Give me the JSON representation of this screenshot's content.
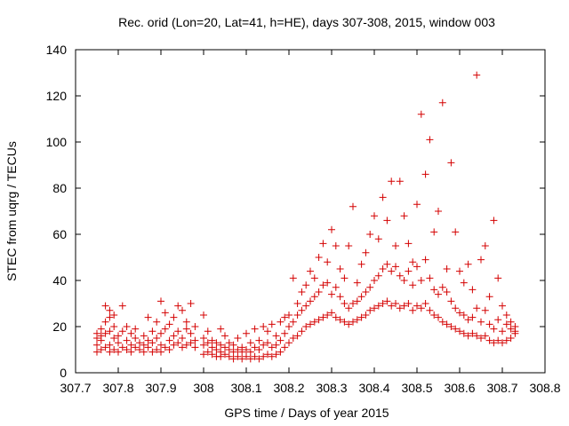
{
  "chart_data": {
    "type": "scatter",
    "title": "Rec. orid (Lon=20, Lat=41, h=HE), days 307-308, 2015, window 003",
    "xlabel": "GPS time / Days of year 2015",
    "ylabel": "STEC from uqrg / TECUs",
    "xlim": [
      307.7,
      308.8
    ],
    "ylim": [
      0,
      140
    ],
    "xticks": [
      "307.7",
      "307.8",
      "307.9",
      "308",
      "308.1",
      "308.2",
      "308.3",
      "308.4",
      "308.5",
      "308.6",
      "308.7",
      "308.8"
    ],
    "yticks": [
      "0",
      "20",
      "40",
      "60",
      "80",
      "100",
      "120",
      "140"
    ],
    "grid": false,
    "marker": "plus",
    "color": "#d40000",
    "series": [
      {
        "points": [
          [
            307.75,
            9
          ],
          [
            307.75,
            12
          ],
          [
            307.75,
            15
          ],
          [
            307.75,
            17
          ],
          [
            307.76,
            10
          ],
          [
            307.76,
            14
          ],
          [
            307.76,
            16
          ],
          [
            307.76,
            19
          ],
          [
            307.77,
            11
          ],
          [
            307.77,
            17
          ],
          [
            307.77,
            22
          ],
          [
            307.77,
            29
          ],
          [
            307.78,
            9
          ],
          [
            307.78,
            12
          ],
          [
            307.78,
            18
          ],
          [
            307.78,
            24
          ],
          [
            307.78,
            27
          ],
          [
            307.79,
            10
          ],
          [
            307.79,
            15
          ],
          [
            307.79,
            20
          ],
          [
            307.79,
            25
          ],
          [
            307.8,
            9
          ],
          [
            307.8,
            13
          ],
          [
            307.8,
            16
          ],
          [
            307.81,
            11
          ],
          [
            307.81,
            18
          ],
          [
            307.81,
            29
          ],
          [
            307.82,
            10
          ],
          [
            307.82,
            14
          ],
          [
            307.82,
            20
          ],
          [
            307.83,
            9
          ],
          [
            307.83,
            12
          ],
          [
            307.83,
            17
          ],
          [
            307.84,
            11
          ],
          [
            307.84,
            15
          ],
          [
            307.84,
            19
          ],
          [
            307.85,
            10
          ],
          [
            307.85,
            13
          ],
          [
            307.86,
            9
          ],
          [
            307.86,
            12
          ],
          [
            307.86,
            16
          ],
          [
            307.87,
            11
          ],
          [
            307.87,
            14
          ],
          [
            307.87,
            24
          ],
          [
            307.88,
            9
          ],
          [
            307.88,
            13
          ],
          [
            307.88,
            18
          ],
          [
            307.89,
            10
          ],
          [
            307.89,
            15
          ],
          [
            307.89,
            22
          ],
          [
            307.9,
            9
          ],
          [
            307.9,
            12
          ],
          [
            307.9,
            17
          ],
          [
            307.9,
            31
          ],
          [
            307.91,
            11
          ],
          [
            307.91,
            19
          ],
          [
            307.91,
            26
          ],
          [
            307.92,
            10
          ],
          [
            307.92,
            14
          ],
          [
            307.92,
            21
          ],
          [
            307.93,
            12
          ],
          [
            307.93,
            16
          ],
          [
            307.93,
            24
          ],
          [
            307.94,
            13
          ],
          [
            307.94,
            18
          ],
          [
            307.94,
            29
          ],
          [
            307.95,
            11
          ],
          [
            307.95,
            15
          ],
          [
            307.95,
            27
          ],
          [
            307.96,
            12
          ],
          [
            307.96,
            19
          ],
          [
            307.96,
            22
          ],
          [
            307.97,
            13
          ],
          [
            307.97,
            17
          ],
          [
            307.97,
            30
          ],
          [
            307.98,
            11
          ],
          [
            307.98,
            14
          ],
          [
            307.98,
            20
          ],
          [
            308.0,
            8
          ],
          [
            308.0,
            12
          ],
          [
            308.0,
            15
          ],
          [
            308.0,
            25
          ],
          [
            308.01,
            9
          ],
          [
            308.01,
            13
          ],
          [
            308.01,
            18
          ],
          [
            308.02,
            8
          ],
          [
            308.02,
            11
          ],
          [
            308.02,
            14
          ],
          [
            308.03,
            7
          ],
          [
            308.03,
            10
          ],
          [
            308.03,
            13
          ],
          [
            308.04,
            7
          ],
          [
            308.04,
            9
          ],
          [
            308.04,
            12
          ],
          [
            308.04,
            19
          ],
          [
            308.05,
            8
          ],
          [
            308.05,
            11
          ],
          [
            308.05,
            16
          ],
          [
            308.06,
            7
          ],
          [
            308.06,
            10
          ],
          [
            308.06,
            13
          ],
          [
            308.07,
            6
          ],
          [
            308.07,
            9
          ],
          [
            308.07,
            12
          ],
          [
            308.08,
            7
          ],
          [
            308.08,
            10
          ],
          [
            308.08,
            15
          ],
          [
            308.09,
            6
          ],
          [
            308.09,
            9
          ],
          [
            308.09,
            11
          ],
          [
            308.1,
            7
          ],
          [
            308.1,
            10
          ],
          [
            308.1,
            17
          ],
          [
            308.11,
            6
          ],
          [
            308.11,
            9
          ],
          [
            308.11,
            13
          ],
          [
            308.12,
            7
          ],
          [
            308.12,
            11
          ],
          [
            308.12,
            19
          ],
          [
            308.13,
            6
          ],
          [
            308.13,
            10
          ],
          [
            308.13,
            14
          ],
          [
            308.14,
            7
          ],
          [
            308.14,
            12
          ],
          [
            308.14,
            20
          ],
          [
            308.15,
            8
          ],
          [
            308.15,
            13
          ],
          [
            308.15,
            18
          ],
          [
            308.16,
            7
          ],
          [
            308.16,
            11
          ],
          [
            308.16,
            21
          ],
          [
            308.17,
            8
          ],
          [
            308.17,
            12
          ],
          [
            308.17,
            16
          ],
          [
            308.18,
            9
          ],
          [
            308.18,
            14
          ],
          [
            308.18,
            22
          ],
          [
            308.19,
            11
          ],
          [
            308.19,
            17
          ],
          [
            308.19,
            24
          ],
          [
            308.2,
            13
          ],
          [
            308.2,
            20
          ],
          [
            308.2,
            25
          ],
          [
            308.21,
            15
          ],
          [
            308.21,
            22
          ],
          [
            308.21,
            41
          ],
          [
            308.22,
            16
          ],
          [
            308.22,
            25
          ],
          [
            308.22,
            30
          ],
          [
            308.23,
            18
          ],
          [
            308.23,
            27
          ],
          [
            308.23,
            35
          ],
          [
            308.24,
            20
          ],
          [
            308.24,
            29
          ],
          [
            308.24,
            38
          ],
          [
            308.25,
            21
          ],
          [
            308.25,
            31
          ],
          [
            308.25,
            44
          ],
          [
            308.26,
            22
          ],
          [
            308.26,
            33
          ],
          [
            308.26,
            41
          ],
          [
            308.27,
            23
          ],
          [
            308.27,
            35
          ],
          [
            308.27,
            50
          ],
          [
            308.28,
            24
          ],
          [
            308.28,
            38
          ],
          [
            308.28,
            56
          ],
          [
            308.29,
            25
          ],
          [
            308.29,
            39
          ],
          [
            308.29,
            48
          ],
          [
            308.3,
            26
          ],
          [
            308.3,
            34
          ],
          [
            308.3,
            62
          ],
          [
            308.31,
            24
          ],
          [
            308.31,
            37
          ],
          [
            308.31,
            55
          ],
          [
            308.32,
            23
          ],
          [
            308.32,
            33
          ],
          [
            308.32,
            45
          ],
          [
            308.33,
            22
          ],
          [
            308.33,
            30
          ],
          [
            308.33,
            41
          ],
          [
            308.34,
            21
          ],
          [
            308.34,
            28
          ],
          [
            308.34,
            55
          ],
          [
            308.35,
            22
          ],
          [
            308.35,
            30
          ],
          [
            308.35,
            72
          ],
          [
            308.36,
            23
          ],
          [
            308.36,
            31
          ],
          [
            308.36,
            39
          ],
          [
            308.37,
            24
          ],
          [
            308.37,
            33
          ],
          [
            308.37,
            47
          ],
          [
            308.38,
            25
          ],
          [
            308.38,
            35
          ],
          [
            308.38,
            52
          ],
          [
            308.39,
            27
          ],
          [
            308.39,
            37
          ],
          [
            308.39,
            60
          ],
          [
            308.4,
            28
          ],
          [
            308.4,
            40
          ],
          [
            308.4,
            68
          ],
          [
            308.41,
            29
          ],
          [
            308.41,
            42
          ],
          [
            308.41,
            58
          ],
          [
            308.42,
            30
          ],
          [
            308.42,
            45
          ],
          [
            308.42,
            76
          ],
          [
            308.43,
            31
          ],
          [
            308.43,
            47
          ],
          [
            308.43,
            66
          ],
          [
            308.44,
            29
          ],
          [
            308.44,
            44
          ],
          [
            308.44,
            83
          ],
          [
            308.45,
            30
          ],
          [
            308.45,
            46
          ],
          [
            308.45,
            55
          ],
          [
            308.46,
            28
          ],
          [
            308.46,
            42
          ],
          [
            308.46,
            83
          ],
          [
            308.47,
            29
          ],
          [
            308.47,
            40
          ],
          [
            308.47,
            68
          ],
          [
            308.48,
            30
          ],
          [
            308.48,
            44
          ],
          [
            308.48,
            56
          ],
          [
            308.49,
            27
          ],
          [
            308.49,
            38
          ],
          [
            308.49,
            48
          ],
          [
            308.5,
            29
          ],
          [
            308.5,
            46
          ],
          [
            308.5,
            73
          ],
          [
            308.51,
            28
          ],
          [
            308.51,
            40
          ],
          [
            308.51,
            112
          ],
          [
            308.52,
            30
          ],
          [
            308.52,
            49
          ],
          [
            308.52,
            86
          ],
          [
            308.53,
            27
          ],
          [
            308.53,
            41
          ],
          [
            308.53,
            101
          ],
          [
            308.54,
            25
          ],
          [
            308.54,
            36
          ],
          [
            308.54,
            61
          ],
          [
            308.55,
            24
          ],
          [
            308.55,
            34
          ],
          [
            308.55,
            70
          ],
          [
            308.56,
            22
          ],
          [
            308.56,
            37
          ],
          [
            308.56,
            117
          ],
          [
            308.57,
            21
          ],
          [
            308.57,
            35
          ],
          [
            308.57,
            45
          ],
          [
            308.58,
            20
          ],
          [
            308.58,
            31
          ],
          [
            308.58,
            91
          ],
          [
            308.59,
            19
          ],
          [
            308.59,
            28
          ],
          [
            308.59,
            61
          ],
          [
            308.6,
            18
          ],
          [
            308.6,
            26
          ],
          [
            308.6,
            44
          ],
          [
            308.61,
            17
          ],
          [
            308.61,
            25
          ],
          [
            308.61,
            39
          ],
          [
            308.62,
            16
          ],
          [
            308.62,
            23
          ],
          [
            308.62,
            47
          ],
          [
            308.63,
            17
          ],
          [
            308.63,
            24
          ],
          [
            308.63,
            36
          ],
          [
            308.64,
            16
          ],
          [
            308.64,
            28
          ],
          [
            308.64,
            129
          ],
          [
            308.65,
            15
          ],
          [
            308.65,
            22
          ],
          [
            308.65,
            49
          ],
          [
            308.66,
            16
          ],
          [
            308.66,
            27
          ],
          [
            308.66,
            55
          ],
          [
            308.67,
            14
          ],
          [
            308.67,
            21
          ],
          [
            308.67,
            33
          ],
          [
            308.68,
            13
          ],
          [
            308.68,
            19
          ],
          [
            308.68,
            66
          ],
          [
            308.69,
            14
          ],
          [
            308.69,
            23
          ],
          [
            308.69,
            41
          ],
          [
            308.7,
            13
          ],
          [
            308.7,
            18
          ],
          [
            308.7,
            29
          ],
          [
            308.71,
            14
          ],
          [
            308.71,
            21
          ],
          [
            308.71,
            25
          ],
          [
            308.72,
            15
          ],
          [
            308.72,
            19
          ],
          [
            308.72,
            22
          ],
          [
            308.73,
            17
          ],
          [
            308.73,
            20
          ],
          [
            308.73,
            18
          ]
        ]
      }
    ]
  }
}
